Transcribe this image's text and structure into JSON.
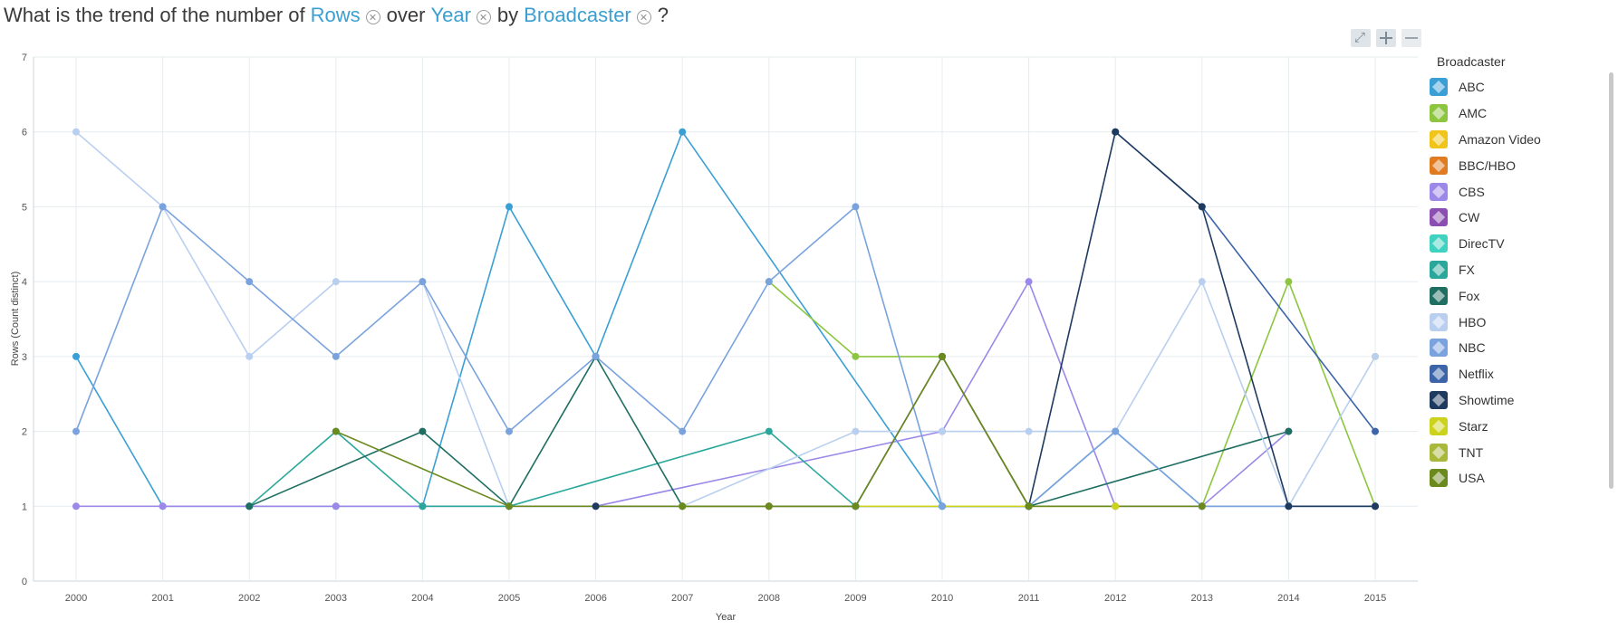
{
  "question": {
    "prefix": "What is the trend of the number of",
    "measure": "Rows",
    "over": "over",
    "dimension": "Year",
    "by": "by",
    "group": "Broadcaster",
    "suffix": "?"
  },
  "chart_data": {
    "type": "line",
    "xlabel": "Year",
    "ylabel": "Rows (Count distinct)",
    "ylim": [
      0,
      7
    ],
    "x": [
      2000,
      2001,
      2002,
      2003,
      2004,
      2005,
      2006,
      2007,
      2008,
      2009,
      2010,
      2011,
      2012,
      2013,
      2014,
      2015
    ],
    "y_ticks": [
      "0",
      "1",
      "2",
      "3",
      "4",
      "5",
      "6",
      "7"
    ],
    "legend_title": "Broadcaster",
    "legend_position": "right",
    "grid": true,
    "series": [
      {
        "name": "ABC",
        "color": "#3a9fd4",
        "points": [
          [
            2000,
            3
          ],
          [
            2001,
            1
          ],
          [
            2002,
            1
          ],
          [
            2003,
            1
          ],
          [
            2004,
            1
          ],
          [
            2005,
            5
          ],
          [
            2006,
            3
          ],
          [
            2007,
            6
          ],
          [
            2010,
            1
          ],
          [
            2011,
            1
          ],
          [
            2012,
            2
          ],
          [
            2013,
            1
          ],
          [
            2014,
            1
          ],
          [
            2015,
            1
          ]
        ]
      },
      {
        "name": "AMC",
        "color": "#8cc63f",
        "points": [
          [
            2008,
            4
          ],
          [
            2009,
            3
          ],
          [
            2010,
            3
          ],
          [
            2011,
            1
          ],
          [
            2012,
            1
          ],
          [
            2013,
            1
          ],
          [
            2014,
            4
          ],
          [
            2015,
            1
          ]
        ]
      },
      {
        "name": "Amazon Video",
        "color": "#f0c419",
        "points": [
          [
            2015,
            3
          ]
        ]
      },
      {
        "name": "BBC/HBO",
        "color": "#e07b1f",
        "points": [
          [
            2008,
            1
          ]
        ]
      },
      {
        "name": "CBS",
        "color": "#9b88e8",
        "points": [
          [
            2000,
            1
          ],
          [
            2001,
            1
          ],
          [
            2002,
            1
          ],
          [
            2003,
            1
          ],
          [
            2004,
            1
          ],
          [
            2005,
            1
          ],
          [
            2006,
            1
          ],
          [
            2010,
            2
          ],
          [
            2011,
            4
          ],
          [
            2012,
            1
          ],
          [
            2013,
            1
          ],
          [
            2014,
            2
          ]
        ]
      },
      {
        "name": "CW",
        "color": "#8a4fb0",
        "points": [
          [
            2015,
            1
          ]
        ]
      },
      {
        "name": "DirecTV",
        "color": "#40d2c0",
        "points": [
          [
            2011,
            1
          ]
        ]
      },
      {
        "name": "FX",
        "color": "#2aa79b",
        "points": [
          [
            2002,
            1
          ],
          [
            2003,
            2
          ],
          [
            2004,
            1
          ],
          [
            2005,
            1
          ],
          [
            2008,
            2
          ],
          [
            2009,
            1
          ],
          [
            2010,
            1
          ],
          [
            2011,
            1
          ]
        ]
      },
      {
        "name": "Fox",
        "color": "#1f6e62",
        "points": [
          [
            2002,
            1
          ],
          [
            2004,
            2
          ],
          [
            2005,
            1
          ],
          [
            2006,
            3
          ],
          [
            2007,
            1
          ],
          [
            2011,
            1
          ],
          [
            2014,
            2
          ]
        ]
      },
      {
        "name": "HBO",
        "color": "#b9cff0",
        "points": [
          [
            2000,
            6
          ],
          [
            2001,
            5
          ],
          [
            2002,
            3
          ],
          [
            2003,
            4
          ],
          [
            2004,
            4
          ],
          [
            2005,
            1
          ],
          [
            2007,
            1
          ],
          [
            2009,
            2
          ],
          [
            2010,
            2
          ],
          [
            2011,
            2
          ],
          [
            2012,
            2
          ],
          [
            2013,
            4
          ],
          [
            2014,
            1
          ],
          [
            2015,
            3
          ]
        ]
      },
      {
        "name": "NBC",
        "color": "#7aa3de",
        "points": [
          [
            2000,
            2
          ],
          [
            2001,
            5
          ],
          [
            2002,
            4
          ],
          [
            2003,
            3
          ],
          [
            2004,
            4
          ],
          [
            2005,
            2
          ],
          [
            2006,
            3
          ],
          [
            2007,
            2
          ],
          [
            2008,
            4
          ],
          [
            2009,
            5
          ],
          [
            2010,
            1
          ],
          [
            2011,
            1
          ],
          [
            2012,
            2
          ],
          [
            2013,
            1
          ],
          [
            2014,
            1
          ],
          [
            2015,
            1
          ]
        ]
      },
      {
        "name": "Netflix",
        "color": "#3c64a8",
        "points": [
          [
            2012,
            6
          ],
          [
            2013,
            5
          ],
          [
            2015,
            2
          ]
        ]
      },
      {
        "name": "Showtime",
        "color": "#1e3a5f",
        "points": [
          [
            2006,
            1
          ],
          [
            2007,
            1
          ],
          [
            2008,
            1
          ],
          [
            2009,
            1
          ],
          [
            2010,
            3
          ],
          [
            2011,
            1
          ],
          [
            2012,
            6
          ],
          [
            2013,
            5
          ],
          [
            2014,
            1
          ],
          [
            2015,
            1
          ]
        ]
      },
      {
        "name": "Starz",
        "color": "#cdd31c",
        "points": [
          [
            2007,
            1
          ],
          [
            2012,
            1
          ]
        ]
      },
      {
        "name": "TNT",
        "color": "#a9b83a",
        "points": [
          [
            2008,
            1
          ]
        ]
      },
      {
        "name": "USA",
        "color": "#6b8a1e",
        "points": [
          [
            2003,
            2
          ],
          [
            2005,
            1
          ],
          [
            2007,
            1
          ],
          [
            2008,
            1
          ],
          [
            2009,
            1
          ],
          [
            2010,
            3
          ],
          [
            2011,
            1
          ],
          [
            2013,
            1
          ]
        ]
      }
    ]
  }
}
